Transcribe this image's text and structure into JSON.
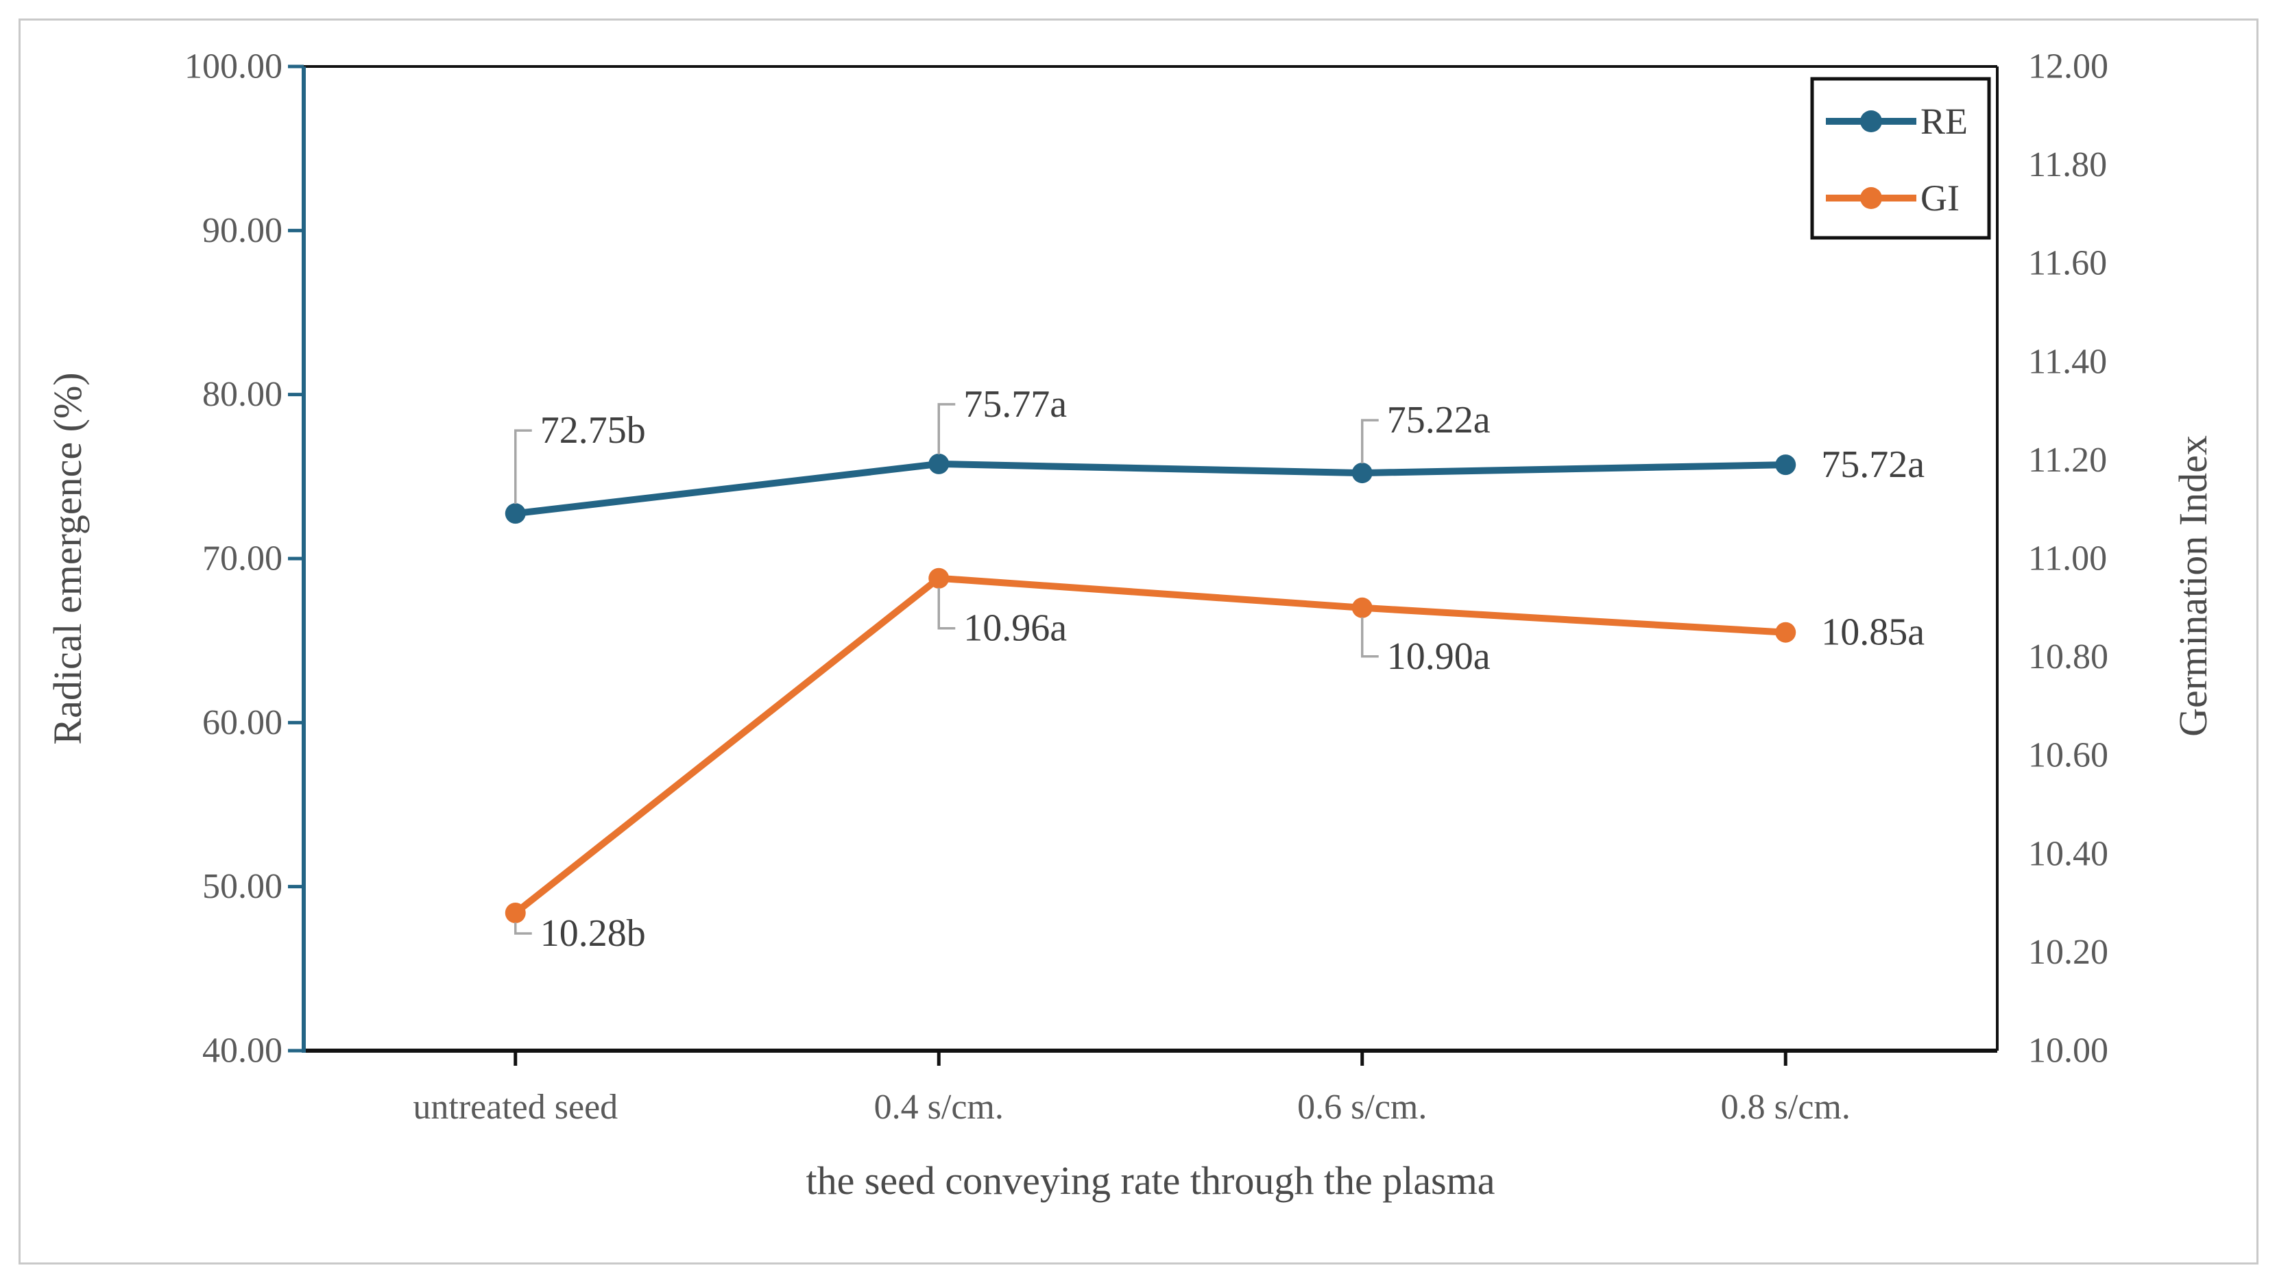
{
  "figure": {
    "border_color": "#C9C9C9",
    "background_color": "#FFFFFF",
    "axis_line_color": "#111111",
    "leader_line_color": "#A6A6A6"
  },
  "chart_data": {
    "type": "line",
    "categories": [
      "untreated seed",
      "0.4 s/cm.",
      "0.6 s/cm.",
      "0.8 s/cm."
    ],
    "series": [
      {
        "name": "RE",
        "axis": "left",
        "color": "#236485",
        "values": [
          72.75,
          75.77,
          75.22,
          75.72
        ],
        "point_labels": [
          "72.75b",
          "75.77a",
          "75.22a",
          "75.72a"
        ]
      },
      {
        "name": "GI",
        "axis": "right",
        "color": "#E8742F",
        "values": [
          10.28,
          10.96,
          10.9,
          10.85
        ],
        "point_labels": [
          "10.28b",
          "10.96a",
          "10.90a",
          "10.85a"
        ]
      }
    ],
    "left_axis": {
      "title": "Radical emergence (%)",
      "min": 40,
      "max": 100,
      "step": 10,
      "tick_labels": [
        "100.00",
        "90.00",
        "80.00",
        "70.00",
        "60.00",
        "50.00",
        "40.00"
      ],
      "line_color": "#236485"
    },
    "right_axis": {
      "title": "Germination Index",
      "min": 10,
      "max": 12,
      "step": 0.2,
      "tick_labels": [
        "12.00",
        "11.80",
        "11.60",
        "11.40",
        "11.20",
        "11.00",
        "10.80",
        "10.60",
        "10.40",
        "10.20",
        "10.00"
      ],
      "line_color": "#111111"
    },
    "x_axis": {
      "title": "the seed conveying rate through the plasma",
      "line_color": "#111111"
    },
    "legend": {
      "position": "top-right",
      "entries": [
        "RE",
        "GI"
      ]
    },
    "grid": "off"
  }
}
